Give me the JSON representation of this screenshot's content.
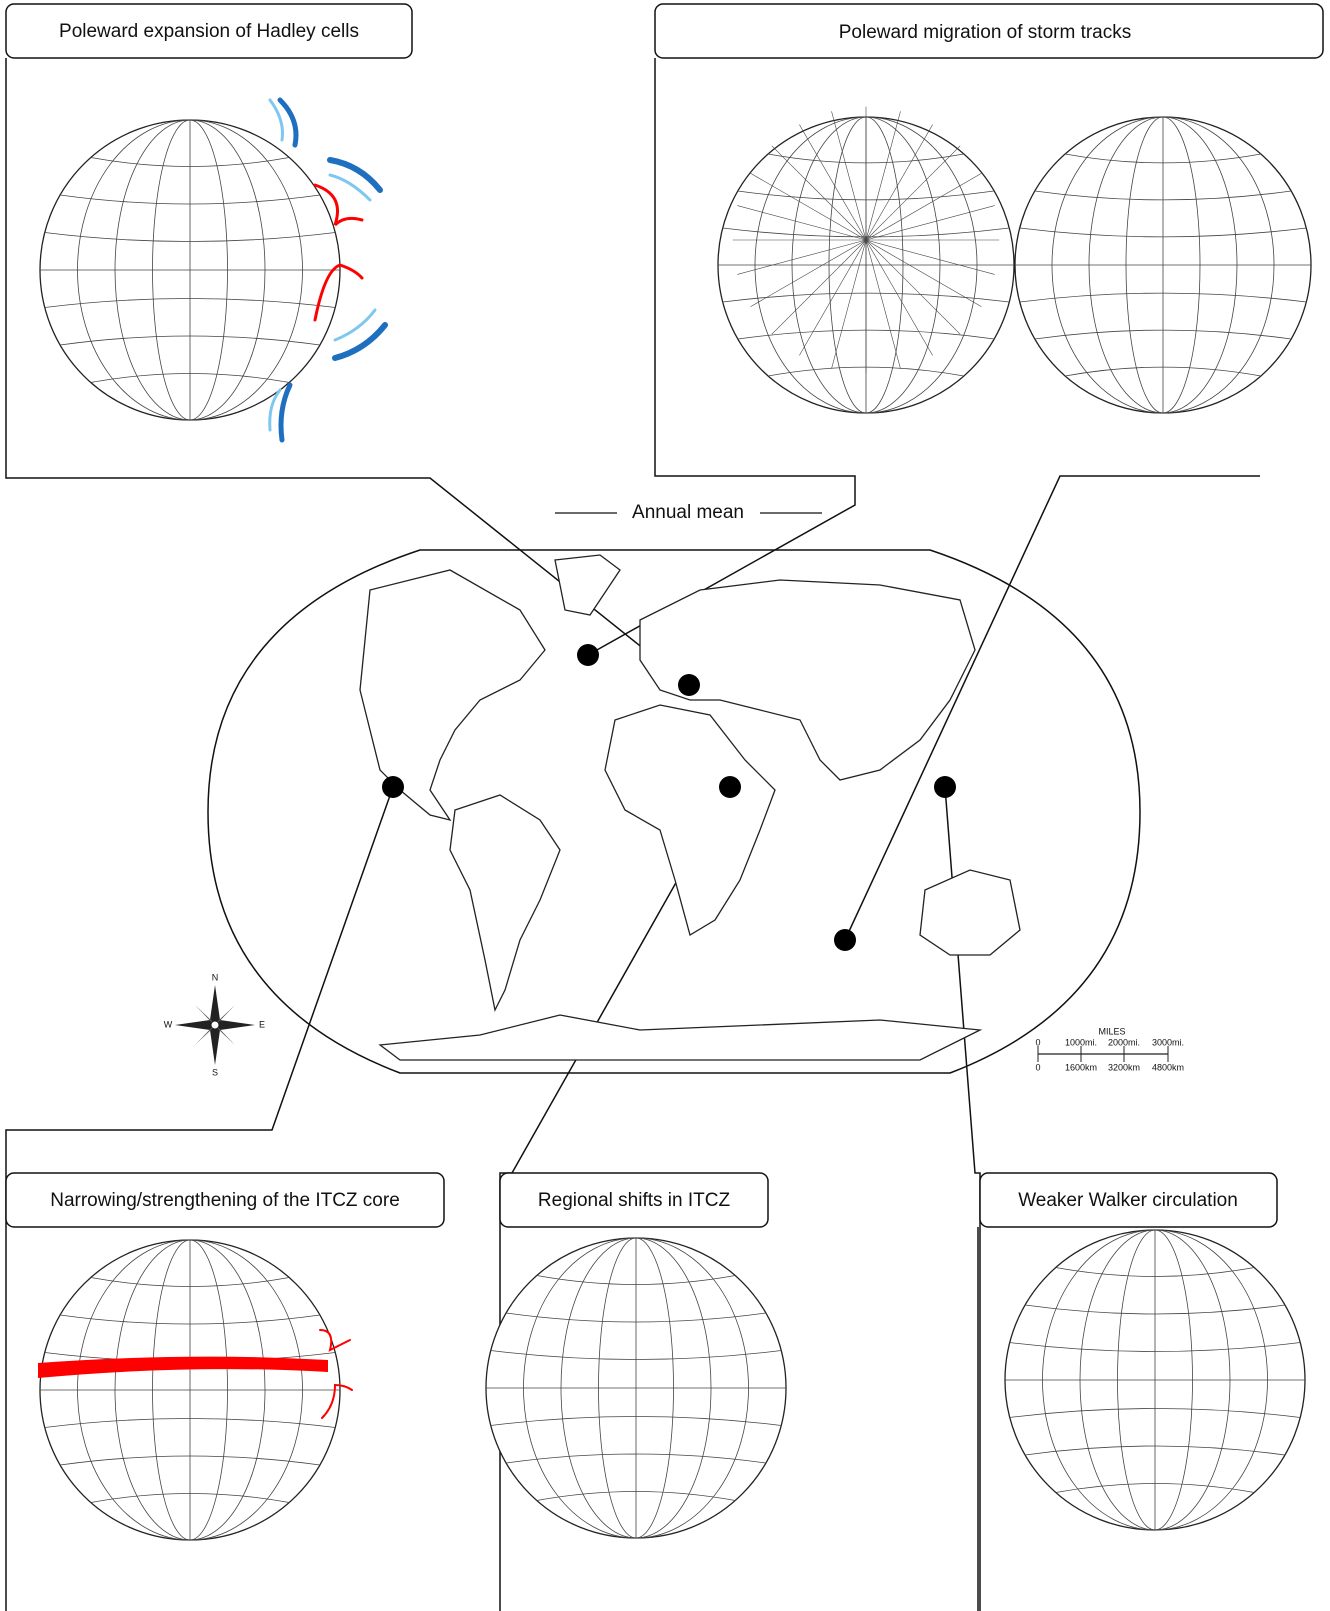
{
  "panels": [
    {
      "title": "Poleward expansion of Hadley cells"
    },
    {
      "title": "Poleward migration of storm tracks"
    },
    {
      "title": "Narrowing/strengthening of the ITCZ core"
    },
    {
      "title": "Regional shifts in ITCZ"
    },
    {
      "title": "Weaker Walker circulation"
    }
  ],
  "center": {
    "title": "Annual mean"
  },
  "compass": {
    "n": "N",
    "s": "S",
    "w": "W",
    "e": "E"
  },
  "scale": {
    "unit": "MILES",
    "miles": [
      "0",
      "1000mi.",
      "2000mi.",
      "3000mi."
    ],
    "km": [
      "0",
      "1600km",
      "3200km",
      "4800km"
    ]
  }
}
